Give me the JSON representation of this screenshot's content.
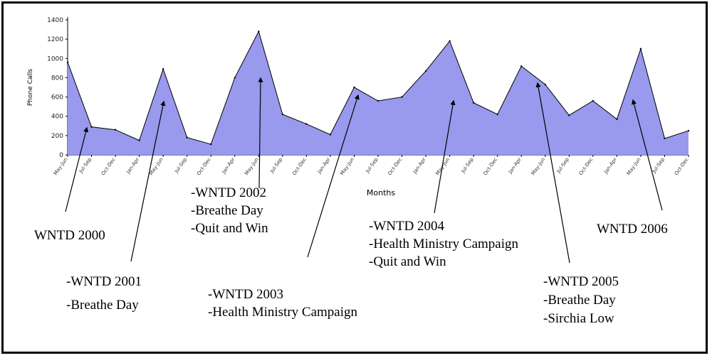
{
  "chart_data": {
    "type": "area",
    "xlabel": "Months",
    "ylabel": "Phone Calls",
    "ylim": [
      0,
      1400
    ],
    "yticks": [
      0,
      200,
      400,
      600,
      800,
      1000,
      1200,
      1400
    ],
    "fill_color": "#9999ee",
    "stroke_color": "#000000",
    "x": [
      "May-Jun",
      "Jul-Sep",
      "Oct-Dec",
      "Jan-Apr",
      "May-Jun",
      "Jul-Sep",
      "Oct-Dec",
      "Jan-Apr",
      "May-Jun",
      "Jul-Sep",
      "Oct-Dec",
      "Jan-Apr",
      "May-Jun",
      "Jul-Sep",
      "Oct-Dec",
      "Jan-Apr",
      "May-Jun",
      "Jul-Sep",
      "Oct-Dec",
      "Jan-Apr",
      "May-Jun",
      "Jul-Sep",
      "Oct-Dec",
      "Jan-Apr",
      "May-Jun",
      "Jul-Sep",
      "Oct-Dec"
    ],
    "values": [
      960,
      290,
      260,
      150,
      890,
      180,
      110,
      800,
      1280,
      420,
      320,
      210,
      700,
      560,
      600,
      870,
      1180,
      540,
      420,
      920,
      730,
      410,
      560,
      370,
      1100,
      170,
      250
    ],
    "annotations": [
      {
        "lines": [
          "WNTD 2000"
        ],
        "point_index": 1
      },
      {
        "lines": [
          "-WNTD 2001",
          "-Breathe Day"
        ],
        "point_index": 4
      },
      {
        "lines": [
          "-WNTD 2002",
          "-Breathe Day",
          "-Quit and Win"
        ],
        "point_index": 8
      },
      {
        "lines": [
          "-WNTD 2003",
          "-Health  Ministry Campaign"
        ],
        "point_index": 12
      },
      {
        "lines": [
          "-WNTD 2004",
          "-Health Ministry Campaign",
          "-Quit and Win"
        ],
        "point_index": 16
      },
      {
        "lines": [
          "-WNTD 2005",
          "-Breathe Day",
          "-Sirchia Low"
        ],
        "point_index": 20
      },
      {
        "lines": [
          "WNTD 2006"
        ],
        "point_index": 24
      }
    ]
  }
}
